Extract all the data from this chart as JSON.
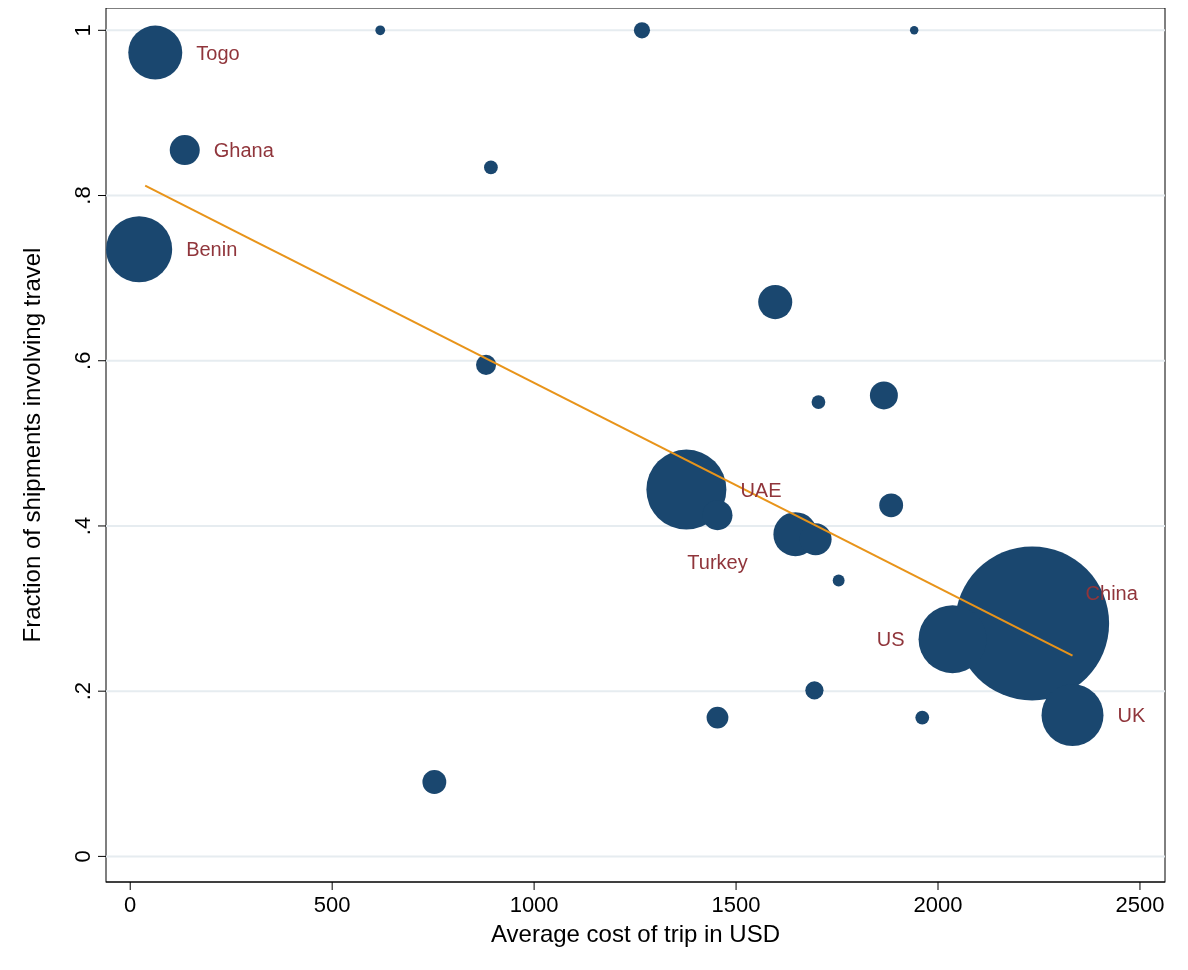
{
  "chart_data": {
    "type": "bubble",
    "xlabel": "Average cost of trip in USD",
    "ylabel": "Fraction of shipments involving travel",
    "xlim": [
      -60,
      2562
    ],
    "ylim": [
      -0.031,
      1.027
    ],
    "xticks": [
      0,
      500,
      1000,
      1500,
      2000,
      2500
    ],
    "yticks": [
      {
        "value": 0,
        "label": "0"
      },
      {
        "value": 0.2,
        "label": ".2"
      },
      {
        "value": 0.4,
        "label": ".4"
      },
      {
        "value": 0.6,
        "label": ".6"
      },
      {
        "value": 0.8,
        "label": ".8"
      },
      {
        "value": 1,
        "label": "1"
      }
    ],
    "grid": "y",
    "series": [
      {
        "color": "#1a476f",
        "x": [
          62,
          135,
          22,
          619,
          1267,
          1941,
          893,
          1597,
          881,
          1704,
          1866,
          1377,
          1454,
          1647,
          1697,
          1884,
          1754,
          2233,
          2036,
          2333,
          1694,
          1454,
          1961,
          753
        ],
        "values": [
          0.973,
          0.855,
          0.735,
          1,
          1,
          1,
          0.834,
          0.671,
          0.595,
          0.55,
          0.558,
          0.444,
          0.413,
          0.39,
          0.384,
          0.425,
          0.334,
          0.282,
          0.263,
          0.171,
          0.201,
          0.168,
          0.168,
          0.09
        ],
        "sizes": [
          0.123,
          0.038,
          0.184,
          0.004,
          0.011,
          0.003,
          0.008,
          0.049,
          0.017,
          0.008,
          0.033,
          0.27,
          0.038,
          0.082,
          0.043,
          0.024,
          0.006,
          1,
          0.195,
          0.162,
          0.014,
          0.02,
          0.008,
          0.024
        ]
      },
      {
        "type": "line",
        "color": "#e8941a",
        "x": [
          37,
          2333
        ],
        "values": [
          0.812,
          0.243
        ]
      }
    ],
    "annotations": [
      {
        "text": "Togo",
        "x": 62,
        "y": 0.973
      },
      {
        "text": "Ghana",
        "x": 135,
        "y": 0.855
      },
      {
        "text": "Benin",
        "x": 22,
        "y": 0.735
      },
      {
        "text": "UAE",
        "x": 1377,
        "y": 0.444
      },
      {
        "text": "Turkey",
        "x": 1454,
        "y": 0.413
      },
      {
        "text": "China",
        "x": 2233,
        "y": 0.282
      },
      {
        "text": "US",
        "x": 2036,
        "y": 0.263
      },
      {
        "text": "UK",
        "x": 2333,
        "y": 0.171
      }
    ]
  }
}
